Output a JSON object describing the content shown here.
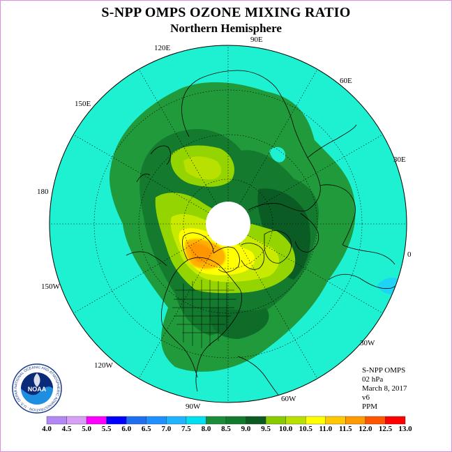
{
  "title": "S-NPP OMPS OZONE MIXING RATIO",
  "subtitle": "Northern Hemisphere",
  "longitude_labels": [
    "90E",
    "60E",
    "30E",
    "0",
    "30W",
    "60W",
    "90W",
    "120W",
    "150W",
    "180",
    "150E",
    "120E"
  ],
  "info": {
    "instrument": "S-NPP OMPS",
    "pressure": "02 hPa",
    "date": "March 8, 2017",
    "version": "v6",
    "units": "PPM"
  },
  "logo": {
    "text": "NOAA",
    "ring_text": "NATIONAL OCEANIC AND ATMOSPHERIC ADMINISTRATION · U.S. DEPARTMENT OF COMMERCE"
  },
  "colorbar": {
    "ticks": [
      "4.0",
      "4.5",
      "5.0",
      "5.5",
      "6.0",
      "6.5",
      "7.0",
      "7.5",
      "8.0",
      "8.5",
      "9.0",
      "9.5",
      "10.0",
      "10.5",
      "11.0",
      "11.5",
      "12.0",
      "12.5",
      "13.0"
    ],
    "colors": [
      "#b387f5",
      "#d8a0f5",
      "#ff00ff",
      "#0000ff",
      "#1e6ff0",
      "#1e90ff",
      "#1eb4ff",
      "#00e0f0",
      "#1a8c3a",
      "#117a2d",
      "#0a5a22",
      "#88cc00",
      "#b8e000",
      "#ffff00",
      "#ffc800",
      "#ff9a00",
      "#ff5500",
      "#ff0000",
      "#8b4513"
    ]
  },
  "chart_data": {
    "type": "heatmap",
    "projection": "north-polar-stereographic",
    "variable": "ozone mixing ratio",
    "units": "PPM",
    "pressure": "02 hPa",
    "date": "March 8, 2017",
    "range": [
      4.0,
      13.0
    ],
    "features": [
      {
        "region": "outer hemisphere",
        "value_range": "7.5-8.0"
      },
      {
        "region": "mid-latitude ring",
        "value_range": "8.0-9.0"
      },
      {
        "region": "North America / Arctic Canada maximum",
        "value_range": "10.5-11.0"
      },
      {
        "region": "east Siberia patch",
        "value_range": "9.5-10.0"
      },
      {
        "region": "pole (no data)",
        "value_range": "missing"
      }
    ]
  }
}
